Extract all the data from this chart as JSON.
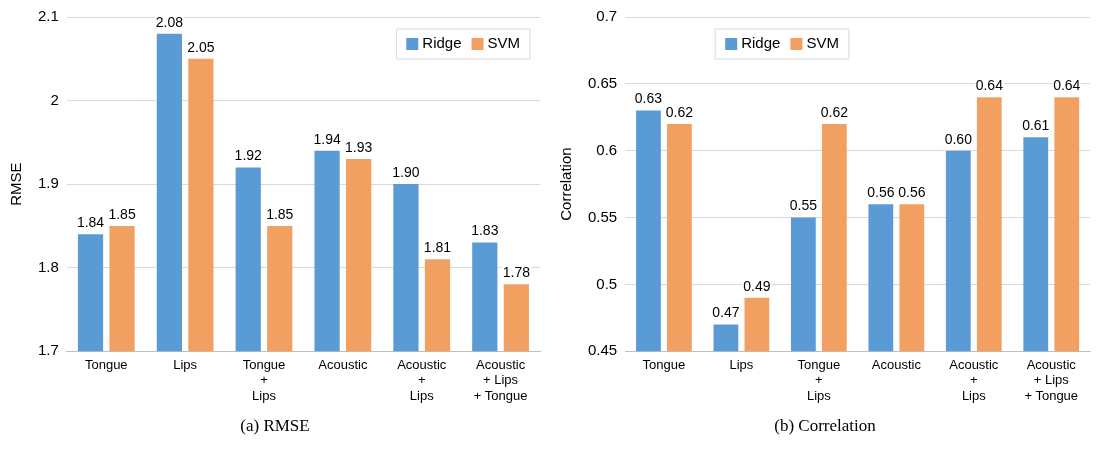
{
  "chart_data": [
    {
      "type": "bar",
      "ylabel": "RMSE",
      "categories": [
        "Tongue",
        "Lips",
        "Tongue\n+\nLips",
        "Acoustic",
        "Acoustic\n+\nLips",
        "Acoustic\n+ Lips\n+ Tongue"
      ],
      "series": [
        {
          "name": "Ridge",
          "color": "#5b9bd5",
          "values": [
            1.84,
            2.08,
            1.92,
            1.94,
            1.9,
            1.83
          ],
          "value_labels": [
            "1.84",
            "2.08",
            "1.92",
            "1.94",
            "1.90",
            "1.83"
          ]
        },
        {
          "name": "SVM",
          "color": "#f2a062",
          "values": [
            1.85,
            2.05,
            1.85,
            1.93,
            1.81,
            1.78
          ],
          "value_labels": [
            "1.85",
            "2.05",
            "1.85",
            "1.93",
            "1.81",
            "1.78"
          ]
        }
      ],
      "ylim": [
        1.7,
        2.1
      ],
      "yticks": [
        1.7,
        1.8,
        1.9,
        2,
        2.1
      ],
      "grid": "y",
      "legend": "top right",
      "annotations": [
        "(a) RMSE"
      ]
    },
    {
      "type": "bar",
      "ylabel": "Correlation",
      "categories": [
        "Tongue",
        "Lips",
        "Tongue\n+\nLips",
        "Acoustic",
        "Acoustic\n+\nLips",
        "Acoustic\n+ Lips\n+ Tongue"
      ],
      "series": [
        {
          "name": "Ridge",
          "color": "#5b9bd5",
          "values": [
            0.63,
            0.47,
            0.55,
            0.56,
            0.6,
            0.61
          ],
          "value_labels": [
            "0.63",
            "0.47",
            "0.55",
            "0.56",
            "0.60",
            "0.61"
          ]
        },
        {
          "name": "SVM",
          "color": "#f2a062",
          "values": [
            0.62,
            0.49,
            0.62,
            0.56,
            0.64,
            0.64
          ],
          "value_labels": [
            "0.62",
            "0.49",
            "0.62",
            "0.56",
            "0.64",
            "0.64"
          ]
        }
      ],
      "ylim": [
        0.45,
        0.7
      ],
      "yticks": [
        0.45,
        0.5,
        0.55,
        0.6,
        0.65,
        0.7
      ],
      "grid": "y",
      "legend": "top left",
      "annotations": [
        "(b) Correlation"
      ]
    }
  ]
}
